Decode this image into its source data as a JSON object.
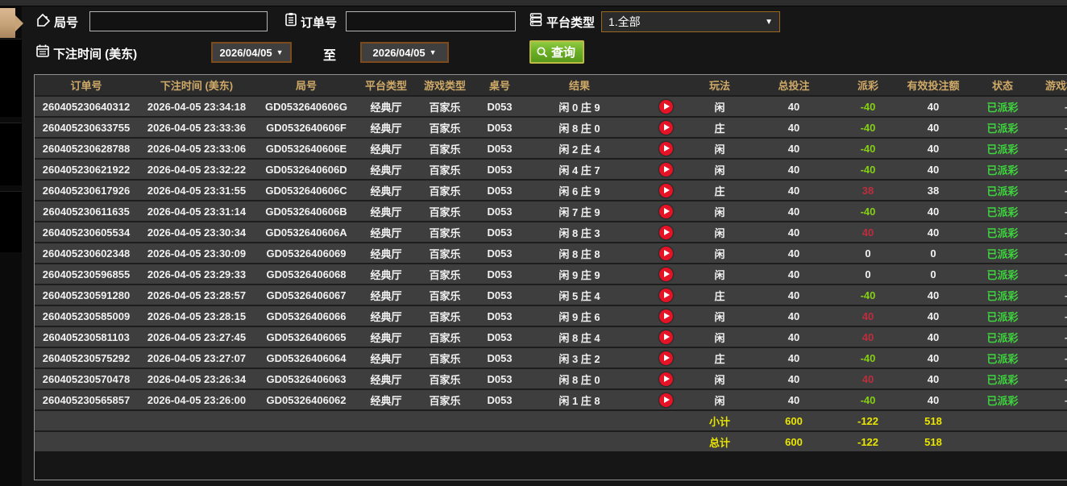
{
  "filters": {
    "round_label": "局号",
    "round_value": "",
    "order_label": "订单号",
    "order_value": "",
    "platform_label": "平台类型",
    "platform_value": "1.全部",
    "bet_time_label": "下注时间 (美东)",
    "date_from": "2026/04/05",
    "date_to": "2026/04/05",
    "to_label": "至",
    "query_label": "查询"
  },
  "icons": {
    "round": "tag-icon",
    "order": "clipboard-icon",
    "platform": "server-list-icon",
    "bet_time": "calendar-icon",
    "query": "search-icon",
    "row_video": "play-icon"
  },
  "colors": {
    "header_gold": "#cfa968",
    "payout_win_red": "#bd2e3d",
    "payout_loss_green": "#85d016",
    "status_paid_green": "#3ed43e",
    "totals_yellow": "#e9e500",
    "query_button_green": "#6cb026",
    "date_border_brown": "#7d4a1c",
    "tab_handle_tan": "#c7a379"
  },
  "table": {
    "columns": [
      {
        "key": "order_no",
        "label": "订单号"
      },
      {
        "key": "bet_time",
        "label": "下注时间 (美东)"
      },
      {
        "key": "round_no",
        "label": "局号"
      },
      {
        "key": "platform",
        "label": "平台类型"
      },
      {
        "key": "game_type",
        "label": "游戏类型"
      },
      {
        "key": "table_no",
        "label": "桌号"
      },
      {
        "key": "result",
        "label": "结果"
      },
      {
        "key": "play",
        "label": ""
      },
      {
        "key": "play_method",
        "label": "玩法"
      },
      {
        "key": "total_bet",
        "label": "总投注"
      },
      {
        "key": "payout",
        "label": "派彩"
      },
      {
        "key": "valid_bet",
        "label": "有效投注额"
      },
      {
        "key": "status",
        "label": "状态"
      },
      {
        "key": "game_mode",
        "label": "游戏模式"
      }
    ],
    "rows": [
      {
        "order_no": "260405230640312",
        "bet_time": "2026-04-05 23:34:18",
        "round_no": "GD0532640606G",
        "platform": "经典厅",
        "game_type": "百家乐",
        "table_no": "D053",
        "result": "闲 0 庄 9",
        "play_method": "闲",
        "total_bet": "40",
        "payout": "-40",
        "payout_color": "neg",
        "valid_bet": "40",
        "status": "已派彩",
        "game_mode": "-"
      },
      {
        "order_no": "260405230633755",
        "bet_time": "2026-04-05 23:33:36",
        "round_no": "GD0532640606F",
        "platform": "经典厅",
        "game_type": "百家乐",
        "table_no": "D053",
        "result": "闲 8 庄 0",
        "play_method": "庄",
        "total_bet": "40",
        "payout": "-40",
        "payout_color": "neg",
        "valid_bet": "40",
        "status": "已派彩",
        "game_mode": "-"
      },
      {
        "order_no": "260405230628788",
        "bet_time": "2026-04-05 23:33:06",
        "round_no": "GD0532640606E",
        "platform": "经典厅",
        "game_type": "百家乐",
        "table_no": "D053",
        "result": "闲 2 庄 4",
        "play_method": "闲",
        "total_bet": "40",
        "payout": "-40",
        "payout_color": "neg",
        "valid_bet": "40",
        "status": "已派彩",
        "game_mode": "-"
      },
      {
        "order_no": "260405230621922",
        "bet_time": "2026-04-05 23:32:22",
        "round_no": "GD0532640606D",
        "platform": "经典厅",
        "game_type": "百家乐",
        "table_no": "D053",
        "result": "闲 4 庄 7",
        "play_method": "闲",
        "total_bet": "40",
        "payout": "-40",
        "payout_color": "neg",
        "valid_bet": "40",
        "status": "已派彩",
        "game_mode": "-"
      },
      {
        "order_no": "260405230617926",
        "bet_time": "2026-04-05 23:31:55",
        "round_no": "GD0532640606C",
        "platform": "经典厅",
        "game_type": "百家乐",
        "table_no": "D053",
        "result": "闲 6 庄 9",
        "play_method": "庄",
        "total_bet": "40",
        "payout": "38",
        "payout_color": "pos",
        "valid_bet": "38",
        "status": "已派彩",
        "game_mode": "-"
      },
      {
        "order_no": "260405230611635",
        "bet_time": "2026-04-05 23:31:14",
        "round_no": "GD0532640606B",
        "platform": "经典厅",
        "game_type": "百家乐",
        "table_no": "D053",
        "result": "闲 7 庄 9",
        "play_method": "闲",
        "total_bet": "40",
        "payout": "-40",
        "payout_color": "neg",
        "valid_bet": "40",
        "status": "已派彩",
        "game_mode": "-"
      },
      {
        "order_no": "260405230605534",
        "bet_time": "2026-04-05 23:30:34",
        "round_no": "GD0532640606A",
        "platform": "经典厅",
        "game_type": "百家乐",
        "table_no": "D053",
        "result": "闲 8 庄 3",
        "play_method": "闲",
        "total_bet": "40",
        "payout": "40",
        "payout_color": "pos",
        "valid_bet": "40",
        "status": "已派彩",
        "game_mode": "-"
      },
      {
        "order_no": "260405230602348",
        "bet_time": "2026-04-05 23:30:09",
        "round_no": "GD05326406069",
        "platform": "经典厅",
        "game_type": "百家乐",
        "table_no": "D053",
        "result": "闲 8 庄 8",
        "play_method": "闲",
        "total_bet": "40",
        "payout": "0",
        "payout_color": "zero",
        "valid_bet": "0",
        "status": "已派彩",
        "game_mode": "-"
      },
      {
        "order_no": "260405230596855",
        "bet_time": "2026-04-05 23:29:33",
        "round_no": "GD05326406068",
        "platform": "经典厅",
        "game_type": "百家乐",
        "table_no": "D053",
        "result": "闲 9 庄 9",
        "play_method": "闲",
        "total_bet": "40",
        "payout": "0",
        "payout_color": "zero",
        "valid_bet": "0",
        "status": "已派彩",
        "game_mode": "-"
      },
      {
        "order_no": "260405230591280",
        "bet_time": "2026-04-05 23:28:57",
        "round_no": "GD05326406067",
        "platform": "经典厅",
        "game_type": "百家乐",
        "table_no": "D053",
        "result": "闲 5 庄 4",
        "play_method": "庄",
        "total_bet": "40",
        "payout": "-40",
        "payout_color": "neg",
        "valid_bet": "40",
        "status": "已派彩",
        "game_mode": "-"
      },
      {
        "order_no": "260405230585009",
        "bet_time": "2026-04-05 23:28:15",
        "round_no": "GD05326406066",
        "platform": "经典厅",
        "game_type": "百家乐",
        "table_no": "D053",
        "result": "闲 9 庄 6",
        "play_method": "闲",
        "total_bet": "40",
        "payout": "40",
        "payout_color": "pos",
        "valid_bet": "40",
        "status": "已派彩",
        "game_mode": "-"
      },
      {
        "order_no": "260405230581103",
        "bet_time": "2026-04-05 23:27:45",
        "round_no": "GD05326406065",
        "platform": "经典厅",
        "game_type": "百家乐",
        "table_no": "D053",
        "result": "闲 8 庄 4",
        "play_method": "闲",
        "total_bet": "40",
        "payout": "40",
        "payout_color": "pos",
        "valid_bet": "40",
        "status": "已派彩",
        "game_mode": "-"
      },
      {
        "order_no": "260405230575292",
        "bet_time": "2026-04-05 23:27:07",
        "round_no": "GD05326406064",
        "platform": "经典厅",
        "game_type": "百家乐",
        "table_no": "D053",
        "result": "闲 3 庄 2",
        "play_method": "庄",
        "total_bet": "40",
        "payout": "-40",
        "payout_color": "neg",
        "valid_bet": "40",
        "status": "已派彩",
        "game_mode": "-"
      },
      {
        "order_no": "260405230570478",
        "bet_time": "2026-04-05 23:26:34",
        "round_no": "GD05326406063",
        "platform": "经典厅",
        "game_type": "百家乐",
        "table_no": "D053",
        "result": "闲 8 庄 0",
        "play_method": "闲",
        "total_bet": "40",
        "payout": "40",
        "payout_color": "pos",
        "valid_bet": "40",
        "status": "已派彩",
        "game_mode": "-"
      },
      {
        "order_no": "260405230565857",
        "bet_time": "2026-04-05 23:26:00",
        "round_no": "GD05326406062",
        "platform": "经典厅",
        "game_type": "百家乐",
        "table_no": "D053",
        "result": "闲 1 庄 8",
        "play_method": "闲",
        "total_bet": "40",
        "payout": "-40",
        "payout_color": "neg",
        "valid_bet": "40",
        "status": "已派彩",
        "game_mode": "-"
      }
    ],
    "subtotal": {
      "label": "小计",
      "total_bet": "600",
      "payout": "-122",
      "valid_bet": "518"
    },
    "total": {
      "label": "总计",
      "total_bet": "600",
      "payout": "-122",
      "valid_bet": "518"
    }
  }
}
